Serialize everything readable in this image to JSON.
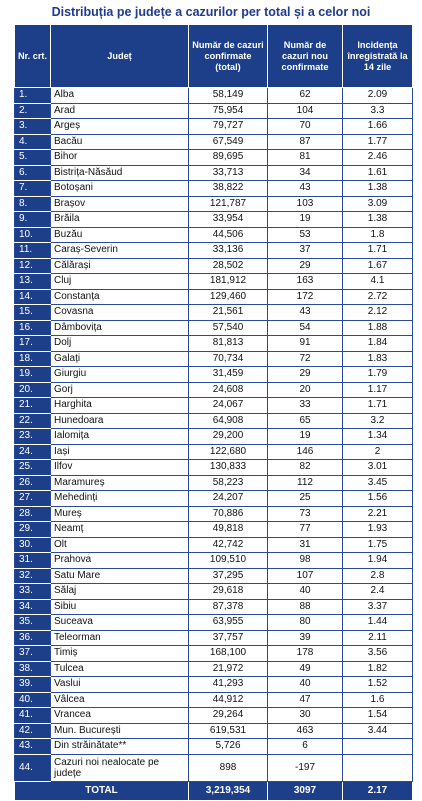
{
  "title": "Distribuția pe județe a cazurilor per total și a celor noi",
  "headers": {
    "nr": "Nr. crt.",
    "judet": "Județ",
    "total": "Număr de cazuri confirmate (total)",
    "noi": "Număr de cazuri nou confirmate",
    "incidenta": "Incidența înregistrată la 14 zile"
  },
  "rows": [
    {
      "nr": "1.",
      "judet": "Alba",
      "total": "58,149",
      "noi": "62",
      "incidenta": "2.09"
    },
    {
      "nr": "2.",
      "judet": "Arad",
      "total": "75,954",
      "noi": "104",
      "incidenta": "3.3"
    },
    {
      "nr": "3.",
      "judet": "Argeș",
      "total": "79,727",
      "noi": "70",
      "incidenta": "1.66"
    },
    {
      "nr": "4.",
      "judet": "Bacău",
      "total": "67,549",
      "noi": "87",
      "incidenta": "1.77"
    },
    {
      "nr": "5.",
      "judet": "Bihor",
      "total": "89,695",
      "noi": "81",
      "incidenta": "2.46"
    },
    {
      "nr": "6.",
      "judet": "Bistrița-Năsăud",
      "total": "33,713",
      "noi": "34",
      "incidenta": "1.61"
    },
    {
      "nr": "7.",
      "judet": "Botoșani",
      "total": "38,822",
      "noi": "43",
      "incidenta": "1.38"
    },
    {
      "nr": "8.",
      "judet": "Brașov",
      "total": "121,787",
      "noi": "103",
      "incidenta": "3.09"
    },
    {
      "nr": "9.",
      "judet": "Brăila",
      "total": "33,954",
      "noi": "19",
      "incidenta": "1.38"
    },
    {
      "nr": "10.",
      "judet": "Buzău",
      "total": "44,506",
      "noi": "53",
      "incidenta": "1.8"
    },
    {
      "nr": "11.",
      "judet": "Caraș-Severin",
      "total": "33,136",
      "noi": "37",
      "incidenta": "1.71"
    },
    {
      "nr": "12.",
      "judet": "Călărași",
      "total": "28,502",
      "noi": "29",
      "incidenta": "1.67"
    },
    {
      "nr": "13.",
      "judet": "Cluj",
      "total": "181,912",
      "noi": "163",
      "incidenta": "4.1"
    },
    {
      "nr": "14.",
      "judet": "Constanța",
      "total": "129,460",
      "noi": "172",
      "incidenta": "2.72"
    },
    {
      "nr": "15.",
      "judet": "Covasna",
      "total": "21,561",
      "noi": "43",
      "incidenta": "2.12"
    },
    {
      "nr": "16.",
      "judet": "Dâmbovița",
      "total": "57,540",
      "noi": "54",
      "incidenta": "1.88"
    },
    {
      "nr": "17.",
      "judet": "Dolj",
      "total": "81,813",
      "noi": "91",
      "incidenta": "1.84"
    },
    {
      "nr": "18.",
      "judet": "Galați",
      "total": "70,734",
      "noi": "72",
      "incidenta": "1.83"
    },
    {
      "nr": "19.",
      "judet": "Giurgiu",
      "total": "31,459",
      "noi": "29",
      "incidenta": "1.79"
    },
    {
      "nr": "20.",
      "judet": "Gorj",
      "total": "24,608",
      "noi": "20",
      "incidenta": "1.17"
    },
    {
      "nr": "21.",
      "judet": "Harghita",
      "total": "24,067",
      "noi": "33",
      "incidenta": "1.71"
    },
    {
      "nr": "22.",
      "judet": "Hunedoara",
      "total": "64,908",
      "noi": "65",
      "incidenta": "3.2"
    },
    {
      "nr": "23.",
      "judet": "Ialomița",
      "total": "29,200",
      "noi": "19",
      "incidenta": "1.34"
    },
    {
      "nr": "24.",
      "judet": "Iași",
      "total": "122,680",
      "noi": "146",
      "incidenta": "2"
    },
    {
      "nr": "25.",
      "judet": "Ilfov",
      "total": "130,833",
      "noi": "82",
      "incidenta": "3.01"
    },
    {
      "nr": "26.",
      "judet": "Maramureș",
      "total": "58,223",
      "noi": "112",
      "incidenta": "3.45"
    },
    {
      "nr": "27.",
      "judet": "Mehedinți",
      "total": "24,207",
      "noi": "25",
      "incidenta": "1.56"
    },
    {
      "nr": "28.",
      "judet": "Mureș",
      "total": "70,886",
      "noi": "73",
      "incidenta": "2.21"
    },
    {
      "nr": "29.",
      "judet": "Neamț",
      "total": "49,818",
      "noi": "77",
      "incidenta": "1.93"
    },
    {
      "nr": "30.",
      "judet": "Olt",
      "total": "42,742",
      "noi": "31",
      "incidenta": "1.75"
    },
    {
      "nr": "31.",
      "judet": "Prahova",
      "total": "109,510",
      "noi": "98",
      "incidenta": "1.94"
    },
    {
      "nr": "32.",
      "judet": "Satu Mare",
      "total": "37,295",
      "noi": "107",
      "incidenta": "2.8"
    },
    {
      "nr": "33.",
      "judet": "Sălaj",
      "total": "29,618",
      "noi": "40",
      "incidenta": "2.4"
    },
    {
      "nr": "34.",
      "judet": "Sibiu",
      "total": "87,378",
      "noi": "88",
      "incidenta": "3.37"
    },
    {
      "nr": "35.",
      "judet": "Suceava",
      "total": "63,955",
      "noi": "80",
      "incidenta": "1.44"
    },
    {
      "nr": "36.",
      "judet": "Teleorman",
      "total": "37,757",
      "noi": "39",
      "incidenta": "2.11"
    },
    {
      "nr": "37.",
      "judet": "Timiș",
      "total": "168,100",
      "noi": "178",
      "incidenta": "3.56"
    },
    {
      "nr": "38.",
      "judet": "Tulcea",
      "total": "21,972",
      "noi": "49",
      "incidenta": "1.82"
    },
    {
      "nr": "39.",
      "judet": "Vaslui",
      "total": "41,293",
      "noi": "40",
      "incidenta": "1.52"
    },
    {
      "nr": "40.",
      "judet": "Vâlcea",
      "total": "44,912",
      "noi": "47",
      "incidenta": "1.6"
    },
    {
      "nr": "41.",
      "judet": "Vrancea",
      "total": "29,264",
      "noi": "30",
      "incidenta": "1.54"
    },
    {
      "nr": "42.",
      "judet": "Mun. București",
      "total": "619,531",
      "noi": "463",
      "incidenta": "3.44"
    },
    {
      "nr": "43.",
      "judet": "Din străinătate**",
      "total": "5,726",
      "noi": "6",
      "incidenta": ""
    },
    {
      "nr": "44.",
      "judet": "Cazuri noi nealocate pe județe",
      "total": "898",
      "noi": "-197",
      "incidenta": ""
    }
  ],
  "totals": {
    "label": "TOTAL",
    "total": "3,219,354",
    "noi": "3097",
    "incidenta": "2.17"
  }
}
